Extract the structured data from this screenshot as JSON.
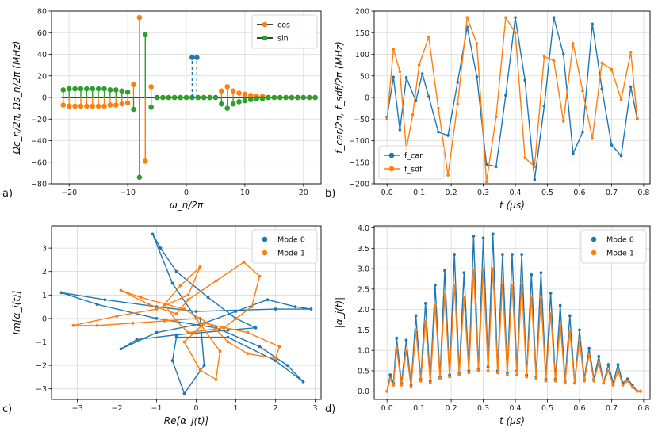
{
  "chart_data": [
    {
      "id": "a",
      "type": "stem",
      "panel_label": "a)",
      "xlabel": "ω_n/2π",
      "ylabel": "Ωc_n/2π,  Ωs_n/2π (MHz)",
      "xlim": [
        -23,
        23
      ],
      "ylim": [
        -80,
        80
      ],
      "xticks": [
        -20,
        -10,
        0,
        10,
        20
      ],
      "yticks": [
        -80,
        -60,
        -40,
        -20,
        0,
        20,
        40,
        60,
        80
      ],
      "grid": true,
      "legend": "top-right",
      "series": [
        {
          "name": "cos",
          "color": "#ff7f0e",
          "x": [
            -21,
            -20,
            -19,
            -18,
            -17,
            -16,
            -15,
            -14,
            -13,
            -12,
            -11,
            -10,
            -9,
            -8,
            -7,
            -6,
            -5,
            -4,
            -3,
            -2,
            -1,
            0,
            1,
            2,
            3,
            4,
            5,
            6,
            7,
            8,
            9,
            10,
            11,
            12,
            13,
            14,
            15,
            16,
            17,
            18,
            19,
            20,
            21,
            22
          ],
          "y": [
            -7,
            -8,
            -8,
            -8,
            -8,
            -8,
            -8,
            -8,
            -7,
            -7,
            -6,
            -5,
            12,
            74,
            -59,
            10,
            0,
            0,
            0,
            0,
            0,
            0,
            0,
            0,
            0,
            0,
            0,
            6,
            10,
            6,
            4,
            3,
            2,
            1,
            1,
            0,
            0,
            0,
            0,
            0,
            0,
            0,
            0,
            0
          ]
        },
        {
          "name": "sin",
          "color": "#2ca02c",
          "x": [
            -21,
            -20,
            -19,
            -18,
            -17,
            -16,
            -15,
            -14,
            -13,
            -12,
            -11,
            -10,
            -9,
            -8,
            -7,
            -6,
            -5,
            -4,
            -3,
            -2,
            -1,
            0,
            1,
            2,
            3,
            4,
            5,
            6,
            7,
            8,
            9,
            10,
            11,
            12,
            13,
            14,
            15,
            16,
            17,
            18,
            19,
            20,
            21,
            22
          ],
          "y": [
            7,
            8,
            8,
            8,
            8,
            8,
            8,
            8,
            7,
            7,
            6,
            5,
            -11,
            -74,
            58,
            -9,
            0,
            0,
            0,
            0,
            0,
            0,
            0,
            0,
            0,
            0,
            0,
            -6,
            -10,
            -6,
            -4,
            -3,
            -2,
            -1,
            -1,
            0,
            0,
            0,
            0,
            0,
            0,
            0,
            0,
            0
          ]
        },
        {
          "name": "",
          "color": "#1f77b4",
          "style": "dashed",
          "x": [
            1,
            1.8
          ],
          "y": [
            37,
            37
          ]
        }
      ]
    },
    {
      "id": "b",
      "type": "line",
      "panel_label": "b)",
      "xlabel": "t (μs)",
      "ylabel": "f_car/2π,  f_sdf/2π (MHz)",
      "xlim": [
        -0.04,
        0.82
      ],
      "ylim": [
        -200,
        200
      ],
      "xticks": [
        0.0,
        0.1,
        0.2,
        0.3,
        0.4,
        0.5,
        0.6,
        0.7,
        0.8
      ],
      "yticks": [
        -200,
        -150,
        -100,
        -50,
        0,
        50,
        100,
        150,
        200
      ],
      "grid": true,
      "legend": "bottom-left",
      "series": [
        {
          "name": "f_car",
          "color": "#1f77b4",
          "x": [
            0.0,
            0.02,
            0.04,
            0.06,
            0.09,
            0.11,
            0.13,
            0.16,
            0.19,
            0.22,
            0.25,
            0.28,
            0.31,
            0.34,
            0.37,
            0.4,
            0.43,
            0.46,
            0.49,
            0.52,
            0.55,
            0.58,
            0.61,
            0.64,
            0.67,
            0.7,
            0.73,
            0.76,
            0.78
          ],
          "y": [
            -45,
            47,
            -75,
            46,
            -8,
            55,
            2,
            -80,
            -88,
            35,
            163,
            48,
            -155,
            -160,
            5,
            185,
            40,
            -190,
            -20,
            185,
            100,
            -130,
            -80,
            170,
            20,
            -110,
            -135,
            25,
            -50
          ]
        },
        {
          "name": "f_sdf",
          "color": "#ff7f0e",
          "x": [
            0.0,
            0.02,
            0.04,
            0.06,
            0.08,
            0.1,
            0.13,
            0.16,
            0.19,
            0.22,
            0.25,
            0.28,
            0.31,
            0.34,
            0.37,
            0.4,
            0.43,
            0.46,
            0.49,
            0.52,
            0.55,
            0.58,
            0.61,
            0.64,
            0.67,
            0.7,
            0.73,
            0.76,
            0.78
          ],
          "y": [
            -50,
            112,
            60,
            -120,
            -40,
            75,
            140,
            -25,
            -180,
            -15,
            185,
            125,
            -195,
            -45,
            185,
            150,
            -140,
            -160,
            95,
            85,
            -55,
            125,
            15,
            -95,
            80,
            65,
            -5,
            105,
            -48
          ]
        }
      ]
    },
    {
      "id": "c",
      "type": "line",
      "panel_label": "c)",
      "xlabel": "Re[α_j(t)]",
      "ylabel": "Im[α_j(t)]",
      "xlim": [
        -3.65,
        3.15
      ],
      "ylim": [
        -3.45,
        3.95
      ],
      "xticks": [
        -3,
        -2,
        -1,
        0,
        1,
        2,
        3
      ],
      "yticks": [
        -3,
        -2,
        -1,
        0,
        1,
        2,
        3
      ],
      "grid": true,
      "legend": "top-right",
      "series": [
        {
          "name": "Mode 0",
          "color": "#1f77b4",
          "x": [
            0,
            -0.6,
            -1.1,
            -0.9,
            -0.5,
            0.3,
            1.0,
            1.5,
            0.8,
            -0.5,
            -1.5,
            -1.9,
            -1.0,
            0.2,
            1.0,
            1.8,
            2.5,
            2.9,
            2.0,
            0.0,
            -1.0,
            -2.3,
            -3.4,
            -2.5,
            -1.0,
            0.5,
            1.6,
            2.3,
            2.7,
            2.0,
            0.8,
            -0.5,
            -0.6,
            -0.3,
            0.2,
            0.1
          ],
          "x_note": "",
          "y": [
            0,
            1.5,
            3.6,
            3.0,
            2.0,
            0.9,
            0.0,
            -0.4,
            -0.5,
            -0.7,
            -0.9,
            -1.3,
            -0.6,
            -0.2,
            0.3,
            0.8,
            0.5,
            0.4,
            0.4,
            0.3,
            0.5,
            0.8,
            1.1,
            0.6,
            0.0,
            -0.4,
            -1.2,
            -2.0,
            -2.7,
            -1.8,
            -0.8,
            -0.8,
            -1.8,
            -3.2,
            -2.0,
            0.0
          ]
        },
        {
          "name": "Mode 1",
          "color": "#ff7f0e",
          "x": [
            0,
            -0.8,
            -1.6,
            -2.5,
            -3.1,
            -2.0,
            -1.0,
            -0.2,
            0.1,
            -0.4,
            -0.8,
            -0.5,
            -0.2,
            0.7,
            1.4,
            1.6,
            1.2,
            0.5,
            -0.2,
            -0.5,
            -1.2,
            -1.9,
            -1.4,
            -0.3,
            0.4,
            0.8,
            1.3,
            2.0,
            2.1,
            1.3,
            0.2,
            -0.3,
            0.1,
            0.5,
            0.6,
            0.0
          ],
          "y": [
            0,
            -0.1,
            -0.2,
            -0.3,
            -0.3,
            0.1,
            0.4,
            1.0,
            2.2,
            1.4,
            0.6,
            -0.1,
            -0.6,
            -0.4,
            0.5,
            1.8,
            2.4,
            1.6,
            0.8,
            0.2,
            0.6,
            1.2,
            0.9,
            0.4,
            -0.3,
            -1.0,
            -1.5,
            -1.7,
            -1.2,
            -0.6,
            -0.2,
            -1.0,
            -2.2,
            -2.6,
            -1.4,
            0.0
          ]
        }
      ]
    },
    {
      "id": "d",
      "type": "line",
      "panel_label": "d)",
      "xlabel": "t (μs)",
      "ylabel": "|α_j(t)|",
      "xlim": [
        -0.04,
        0.82
      ],
      "ylim": [
        -0.2,
        4.05
      ],
      "xticks": [
        0.0,
        0.1,
        0.2,
        0.3,
        0.4,
        0.5,
        0.6,
        0.7,
        0.8
      ],
      "yticks": [
        0.0,
        0.5,
        1.0,
        1.5,
        2.0,
        2.5,
        3.0,
        3.5,
        4.0
      ],
      "grid": true,
      "legend": "top-right",
      "series": [
        {
          "name": "Mode 0",
          "color": "#1f77b4",
          "x": [
            0.0,
            0.01,
            0.02,
            0.03,
            0.045,
            0.06,
            0.075,
            0.09,
            0.105,
            0.12,
            0.135,
            0.15,
            0.165,
            0.18,
            0.195,
            0.21,
            0.225,
            0.24,
            0.255,
            0.27,
            0.285,
            0.3,
            0.315,
            0.33,
            0.345,
            0.36,
            0.375,
            0.39,
            0.405,
            0.42,
            0.435,
            0.45,
            0.465,
            0.48,
            0.495,
            0.51,
            0.525,
            0.54,
            0.555,
            0.57,
            0.585,
            0.6,
            0.615,
            0.63,
            0.645,
            0.66,
            0.675,
            0.69,
            0.705,
            0.72,
            0.735,
            0.75,
            0.765,
            0.78,
            0.79
          ],
          "y": [
            0.0,
            0.4,
            0.2,
            1.3,
            0.2,
            1.25,
            0.15,
            1.85,
            0.3,
            2.15,
            0.25,
            2.6,
            0.35,
            2.95,
            0.4,
            3.35,
            0.45,
            2.9,
            0.5,
            3.8,
            0.55,
            3.75,
            0.6,
            3.85,
            0.5,
            3.35,
            0.45,
            3.35,
            0.5,
            3.35,
            0.4,
            2.85,
            0.35,
            2.9,
            0.3,
            2.4,
            0.3,
            2.1,
            0.25,
            1.85,
            0.2,
            1.5,
            0.3,
            1.05,
            0.3,
            0.85,
            0.2,
            0.65,
            0.2,
            0.65,
            0.2,
            0.3,
            0.15,
            0.0,
            0.0
          ]
        },
        {
          "name": "Mode 1",
          "color": "#ff7f0e",
          "x": [
            0.0,
            0.01,
            0.02,
            0.03,
            0.045,
            0.06,
            0.075,
            0.09,
            0.105,
            0.12,
            0.135,
            0.15,
            0.165,
            0.18,
            0.195,
            0.21,
            0.225,
            0.24,
            0.255,
            0.27,
            0.285,
            0.3,
            0.315,
            0.33,
            0.345,
            0.36,
            0.375,
            0.39,
            0.405,
            0.42,
            0.435,
            0.45,
            0.465,
            0.48,
            0.495,
            0.51,
            0.525,
            0.54,
            0.555,
            0.57,
            0.585,
            0.6,
            0.615,
            0.63,
            0.645,
            0.66,
            0.675,
            0.69,
            0.705,
            0.72,
            0.735,
            0.75,
            0.765,
            0.78,
            0.79
          ],
          "y": [
            0.0,
            0.3,
            0.15,
            1.05,
            0.15,
            1.0,
            0.1,
            1.5,
            0.25,
            1.7,
            0.2,
            2.1,
            0.3,
            2.35,
            0.35,
            2.6,
            0.4,
            2.3,
            0.45,
            2.95,
            0.5,
            3.0,
            0.5,
            3.0,
            0.45,
            2.65,
            0.4,
            2.6,
            0.4,
            2.65,
            0.35,
            2.3,
            0.3,
            2.3,
            0.25,
            1.9,
            0.25,
            1.65,
            0.2,
            1.45,
            0.2,
            1.25,
            0.25,
            0.9,
            0.25,
            0.7,
            0.2,
            0.5,
            0.15,
            0.5,
            0.15,
            0.25,
            0.1,
            0.0,
            0.0
          ]
        }
      ]
    }
  ]
}
